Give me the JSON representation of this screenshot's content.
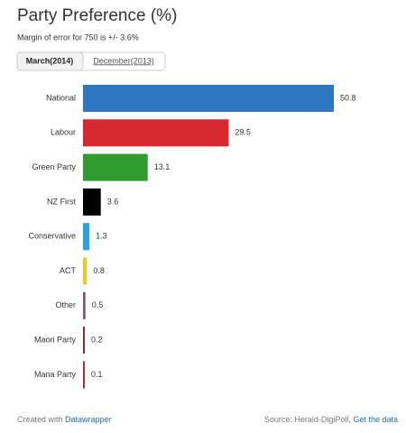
{
  "chart_data": {
    "type": "bar",
    "orientation": "horizontal",
    "title": "Party Preference (%)",
    "subtitle": "Margin of error for 750 is +/- 3.6%",
    "tabs": [
      "March(2014)",
      "December(2013)"
    ],
    "categories": [
      "National",
      "Labour",
      "Green Party",
      "NZ First",
      "Conservative",
      "ACT",
      "Other",
      "Maori Party",
      "Mana Party"
    ],
    "values": [
      50.8,
      29.5,
      13.1,
      3.6,
      1.3,
      0.8,
      0.5,
      0.2,
      0.1
    ],
    "colors": [
      "#2e78bf",
      "#d6282e",
      "#2f9a2f",
      "#000000",
      "#2ba3e3",
      "#e8c92a",
      "#7b52a3",
      "#8a2f2f",
      "#a83232"
    ],
    "footer": {
      "created_with": "Created with",
      "tool": "Datawrapper",
      "source": "Source: Herald-DigiPoll,",
      "data_link": "Get the data"
    }
  }
}
